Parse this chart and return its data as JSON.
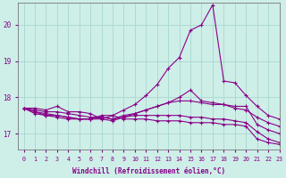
{
  "xlabel": "Windchill (Refroidissement éolien,°C)",
  "background_color": "#ceeee8",
  "grid_color": "#a8d8d0",
  "line_color": "#880088",
  "xlim": [
    -0.5,
    23
  ],
  "ylim": [
    16.55,
    20.6
  ],
  "yticks": [
    17,
    18,
    19,
    20
  ],
  "xticks": [
    0,
    1,
    2,
    3,
    4,
    5,
    6,
    7,
    8,
    9,
    10,
    11,
    12,
    13,
    14,
    15,
    16,
    17,
    18,
    19,
    20,
    21,
    22,
    23
  ],
  "series": [
    [
      17.7,
      17.7,
      17.65,
      17.75,
      17.6,
      17.6,
      17.55,
      17.4,
      17.5,
      17.65,
      17.8,
      18.05,
      18.35,
      18.8,
      19.1,
      19.85,
      20.0,
      20.55,
      18.45,
      18.4,
      18.05,
      17.75,
      17.5,
      17.4
    ],
    [
      17.7,
      17.65,
      17.6,
      17.6,
      17.55,
      17.5,
      17.45,
      17.45,
      17.4,
      17.5,
      17.55,
      17.65,
      17.75,
      17.85,
      18.0,
      18.2,
      17.9,
      17.85,
      17.8,
      17.7,
      17.65,
      17.45,
      17.3,
      17.2
    ],
    [
      17.7,
      17.6,
      17.55,
      17.5,
      17.45,
      17.4,
      17.4,
      17.4,
      17.35,
      17.45,
      17.55,
      17.65,
      17.75,
      17.85,
      17.9,
      17.9,
      17.85,
      17.8,
      17.8,
      17.75,
      17.75,
      17.25,
      17.1,
      17.0
    ],
    [
      17.7,
      17.6,
      17.5,
      17.5,
      17.45,
      17.4,
      17.4,
      17.45,
      17.4,
      17.45,
      17.5,
      17.5,
      17.5,
      17.5,
      17.5,
      17.45,
      17.45,
      17.4,
      17.4,
      17.35,
      17.3,
      17.05,
      16.85,
      16.75
    ],
    [
      17.7,
      17.55,
      17.5,
      17.45,
      17.4,
      17.4,
      17.4,
      17.5,
      17.5,
      17.4,
      17.4,
      17.4,
      17.35,
      17.35,
      17.35,
      17.3,
      17.3,
      17.3,
      17.25,
      17.25,
      17.2,
      16.85,
      16.75,
      16.7
    ]
  ]
}
